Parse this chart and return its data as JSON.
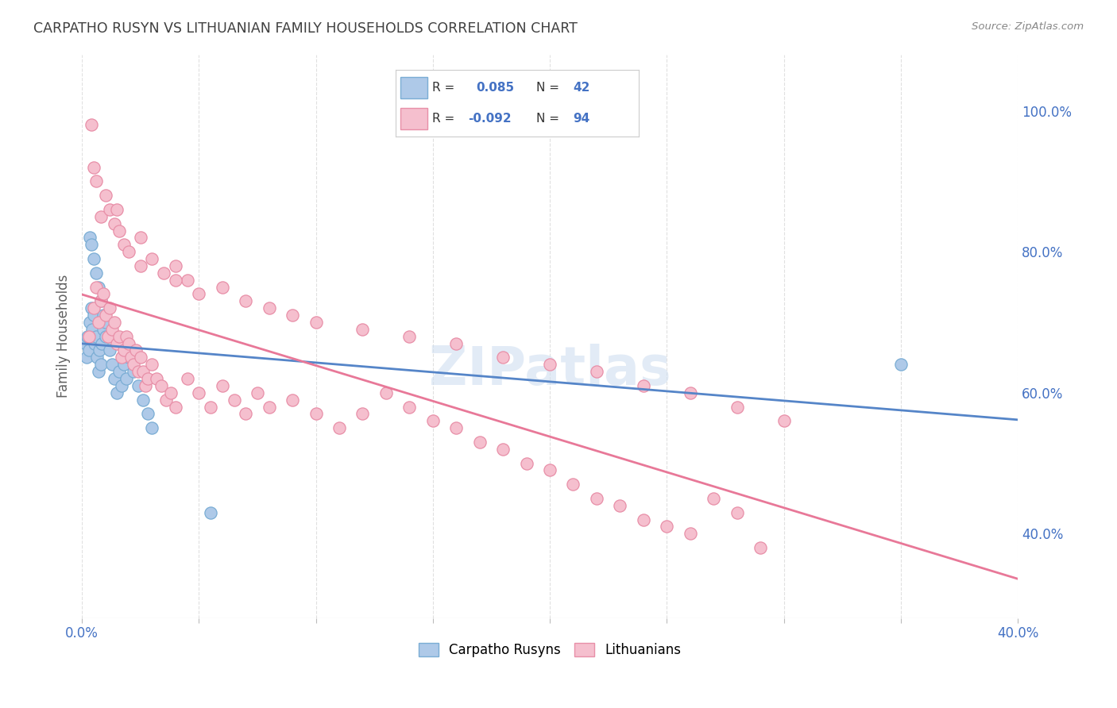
{
  "title": "CARPATHO RUSYN VS LITHUANIAN FAMILY HOUSEHOLDS CORRELATION CHART",
  "source": "Source: ZipAtlas.com",
  "ylabel": "Family Households",
  "blue_label": "Carpatho Rusyns",
  "pink_label": "Lithuanians",
  "blue_R": 0.085,
  "blue_N": 42,
  "pink_R": -0.092,
  "pink_N": 94,
  "blue_color": "#aec9e8",
  "blue_edge_color": "#7aadd4",
  "pink_color": "#f5bfce",
  "pink_edge_color": "#e88fa8",
  "blue_line_color": "#5585c8",
  "pink_line_color": "#e87898",
  "watermark_color": "#d0dff0",
  "background_color": "#ffffff",
  "grid_color": "#e0e0e0",
  "title_color": "#404040",
  "axis_label_color": "#4472c4",
  "legend_R_color": "#4472c4",
  "xlim": [
    0,
    40
  ],
  "ylim": [
    28,
    108
  ],
  "blue_x": [
    0.15,
    0.2,
    0.25,
    0.3,
    0.35,
    0.4,
    0.45,
    0.5,
    0.55,
    0.6,
    0.65,
    0.7,
    0.75,
    0.8,
    0.85,
    0.9,
    1.0,
    1.1,
    1.2,
    1.3,
    1.4,
    1.5,
    1.6,
    1.7,
    1.8,
    1.9,
    2.0,
    2.2,
    2.4,
    2.6,
    2.8,
    3.0,
    0.35,
    0.4,
    0.5,
    0.6,
    0.7,
    0.8,
    0.9,
    1.0,
    5.5,
    35.0
  ],
  "blue_y": [
    67,
    65,
    68,
    66,
    70,
    72,
    69,
    71,
    67,
    68,
    65,
    63,
    66,
    64,
    67,
    69,
    70,
    68,
    66,
    64,
    62,
    60,
    63,
    61,
    64,
    62,
    65,
    63,
    61,
    59,
    57,
    55,
    82,
    81,
    79,
    77,
    75,
    73,
    71,
    68,
    43,
    64
  ],
  "pink_x": [
    0.3,
    0.5,
    0.6,
    0.7,
    0.8,
    0.9,
    1.0,
    1.1,
    1.2,
    1.3,
    1.4,
    1.5,
    1.6,
    1.7,
    1.8,
    1.9,
    2.0,
    2.1,
    2.2,
    2.3,
    2.4,
    2.5,
    2.6,
    2.7,
    2.8,
    3.0,
    3.2,
    3.4,
    3.6,
    3.8,
    4.0,
    4.5,
    5.0,
    5.5,
    6.0,
    6.5,
    7.0,
    7.5,
    8.0,
    9.0,
    10.0,
    11.0,
    12.0,
    13.0,
    14.0,
    15.0,
    16.0,
    17.0,
    18.0,
    19.0,
    20.0,
    21.0,
    22.0,
    23.0,
    24.0,
    25.0,
    26.0,
    27.0,
    28.0,
    29.0,
    0.4,
    0.6,
    0.8,
    1.0,
    1.2,
    1.4,
    1.6,
    1.8,
    2.0,
    2.5,
    3.0,
    3.5,
    4.0,
    4.5,
    5.0,
    6.0,
    7.0,
    8.0,
    9.0,
    10.0,
    12.0,
    14.0,
    16.0,
    18.0,
    20.0,
    22.0,
    24.0,
    26.0,
    28.0,
    30.0,
    0.5,
    1.5,
    2.5,
    4.0
  ],
  "pink_y": [
    68,
    72,
    75,
    70,
    73,
    74,
    71,
    68,
    72,
    69,
    70,
    67,
    68,
    65,
    66,
    68,
    67,
    65,
    64,
    66,
    63,
    65,
    63,
    61,
    62,
    64,
    62,
    61,
    59,
    60,
    58,
    62,
    60,
    58,
    61,
    59,
    57,
    60,
    58,
    59,
    57,
    55,
    57,
    60,
    58,
    56,
    55,
    53,
    52,
    50,
    49,
    47,
    45,
    44,
    42,
    41,
    40,
    45,
    43,
    38,
    98,
    90,
    85,
    88,
    86,
    84,
    83,
    81,
    80,
    82,
    79,
    77,
    78,
    76,
    74,
    75,
    73,
    72,
    71,
    70,
    69,
    68,
    67,
    65,
    64,
    63,
    61,
    60,
    58,
    56,
    92,
    86,
    78,
    76
  ]
}
